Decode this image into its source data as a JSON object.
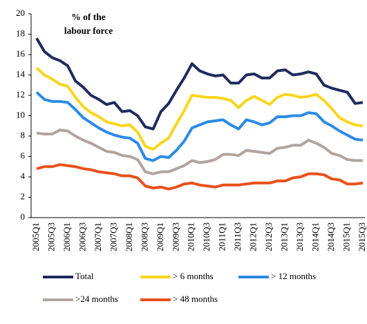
{
  "chart_data": {
    "type": "line",
    "title": [
      "% of the",
      "labour force"
    ],
    "categories": [
      "2005Q1",
      null,
      "2005Q3",
      null,
      "2006Q1",
      null,
      "2006Q3",
      null,
      "2007Q1",
      null,
      "2007Q3",
      null,
      "2008Q1",
      null,
      "2008Q3",
      null,
      "2009Q1",
      null,
      "2009Q3",
      null,
      "2010Q1",
      null,
      "2010Q3",
      null,
      "2011Q1",
      null,
      "2011Q3",
      null,
      "2012Q1",
      null,
      "2012Q3",
      null,
      "2013Q1",
      null,
      "2013Q3",
      null,
      "2014Q1",
      null,
      "2014Q3",
      null,
      "2015Q1",
      null,
      "2015Q3"
    ],
    "series": [
      {
        "name": "Total",
        "color": "#1f2a5e",
        "values": [
          17.6,
          16.3,
          15.7,
          15.4,
          14.9,
          13.4,
          12.8,
          12.0,
          11.6,
          11.1,
          11.3,
          10.4,
          10.5,
          10.0,
          8.9,
          8.7,
          10.4,
          11.2,
          12.5,
          13.7,
          15.1,
          14.4,
          14.1,
          13.9,
          14.0,
          13.2,
          13.2,
          14.0,
          14.1,
          13.7,
          13.7,
          14.4,
          14.5,
          14.0,
          14.1,
          14.3,
          14.1,
          13.0,
          12.7,
          12.5,
          12.3,
          11.2,
          11.3
        ]
      },
      {
        "name": "> 6 months",
        "color": "#f9d51c",
        "values": [
          14.7,
          14.0,
          13.6,
          13.1,
          12.9,
          11.8,
          10.9,
          10.3,
          9.9,
          9.4,
          9.2,
          9.0,
          9.1,
          8.4,
          7.0,
          6.7,
          7.3,
          7.8,
          9.2,
          10.5,
          12.0,
          11.9,
          11.8,
          11.8,
          11.7,
          11.5,
          10.8,
          11.5,
          11.9,
          11.5,
          11.1,
          11.8,
          12.1,
          12.0,
          11.8,
          11.9,
          12.1,
          11.5,
          10.7,
          9.8,
          9.4,
          9.1,
          9.0
        ]
      },
      {
        "name": "> 12 months",
        "color": "#2b8be6",
        "values": [
          12.3,
          11.6,
          11.4,
          11.4,
          11.3,
          10.6,
          9.8,
          9.3,
          8.8,
          8.4,
          8.1,
          7.9,
          7.8,
          7.3,
          5.8,
          5.6,
          6.0,
          5.9,
          6.6,
          7.5,
          8.8,
          9.1,
          9.4,
          9.5,
          9.6,
          9.1,
          8.7,
          9.6,
          9.4,
          9.1,
          9.3,
          9.9,
          9.9,
          10.0,
          10.0,
          10.3,
          10.2,
          9.4,
          9.0,
          8.5,
          8.1,
          7.7,
          7.6
        ]
      },
      {
        "name": ">24 months",
        "color": "#b0a49e",
        "values": [
          8.3,
          8.2,
          8.2,
          8.6,
          8.5,
          8.0,
          7.6,
          7.3,
          6.9,
          6.5,
          6.4,
          6.1,
          6.0,
          5.7,
          4.5,
          4.3,
          4.5,
          4.5,
          4.8,
          5.1,
          5.6,
          5.4,
          5.5,
          5.7,
          6.2,
          6.2,
          6.1,
          6.6,
          6.5,
          6.4,
          6.3,
          6.8,
          6.9,
          7.1,
          7.1,
          7.6,
          7.3,
          6.9,
          6.3,
          6.1,
          5.7,
          5.6,
          5.6
        ]
      },
      {
        "name": "> 48 months",
        "color": "#e8501a",
        "values": [
          4.8,
          5.0,
          5.0,
          5.2,
          5.1,
          5.0,
          4.8,
          4.7,
          4.5,
          4.4,
          4.3,
          4.1,
          4.1,
          3.9,
          3.1,
          2.9,
          3.0,
          2.8,
          3.0,
          3.3,
          3.4,
          3.2,
          3.1,
          3.0,
          3.2,
          3.2,
          3.2,
          3.3,
          3.4,
          3.4,
          3.4,
          3.6,
          3.6,
          3.9,
          4.0,
          4.3,
          4.3,
          4.2,
          3.8,
          3.7,
          3.3,
          3.3,
          3.4
        ]
      }
    ],
    "ylim": [
      0,
      20
    ],
    "yticks": [
      0,
      2,
      4,
      6,
      8,
      10,
      12,
      14,
      16,
      18,
      20
    ],
    "grid": false
  }
}
